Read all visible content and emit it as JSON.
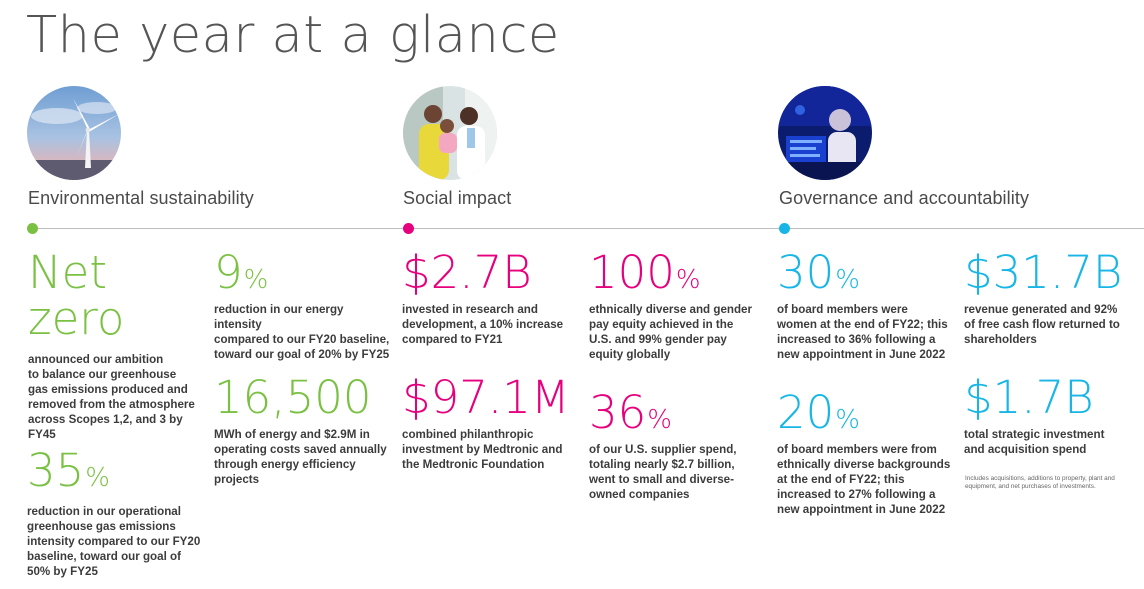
{
  "title": "The year at a glance",
  "colors": {
    "environment": "#7ac143",
    "social": "#e6007e",
    "governance": "#17b6e6"
  },
  "sections": {
    "environment": {
      "label": "Environmental sustainability",
      "photo_icon": "wind-turbine-photo",
      "stats": [
        {
          "value": "Net zero",
          "value_line1": "Net",
          "value_line2": "zero",
          "unit": "",
          "desc_lines": [
            "announced our ambition",
            "to balance our greenhouse",
            "gas emissions produced and",
            "removed from the atmosphere",
            "across Scopes 1,2, and 3 by FY45"
          ]
        },
        {
          "value": "35",
          "unit": "%",
          "desc_lines": [
            "reduction in our operational",
            "greenhouse gas emissions",
            "intensity compared to our FY20",
            "baseline, toward our goal of",
            "50% by FY25"
          ]
        },
        {
          "value": "9",
          "unit": "%",
          "desc_lines": [
            "reduction in our energy intensity",
            "compared to our FY20 baseline,",
            "toward our goal of 20% by FY25"
          ]
        },
        {
          "value": "16,500",
          "unit": "",
          "desc_lines": [
            "MWh of energy and $2.9M in",
            "operating costs saved annually",
            "through energy efficiency",
            "projects"
          ]
        }
      ]
    },
    "social": {
      "label": "Social impact",
      "photo_icon": "healthcare-worker-photo",
      "stats": [
        {
          "value": "$2.7B",
          "unit": "",
          "desc_lines": [
            "invested in research and",
            "development, a 10% increase",
            "compared to FY21"
          ]
        },
        {
          "value": "$97.1M",
          "unit": "",
          "desc_lines": [
            "combined philanthropic",
            "investment by Medtronic and",
            "the Medtronic Foundation"
          ]
        },
        {
          "value": "100",
          "unit": "%",
          "desc_lines": [
            "ethnically diverse and gender",
            "pay equity achieved in the",
            "U.S. and 99% gender pay",
            "equity globally"
          ]
        },
        {
          "value": "36",
          "unit": "%",
          "desc_lines": [
            "of our U.S. supplier spend,",
            "totaling nearly $2.7 billion,",
            "went to small and diverse-",
            "owned companies"
          ]
        }
      ]
    },
    "governance": {
      "label": "Governance and accountability",
      "photo_icon": "laboratory-photo",
      "stats": [
        {
          "value": "30",
          "unit": "%",
          "desc_lines": [
            "of board members were",
            "women at the end of FY22; this",
            "increased to 36% following a",
            "new appointment in June 2022"
          ]
        },
        {
          "value": "20",
          "unit": "%",
          "desc_lines": [
            "of board members were from",
            "ethnically diverse backgrounds",
            "at the end of FY22; this",
            "increased to 27% following a",
            "new appointment in June 2022"
          ]
        },
        {
          "value": "$31.7B",
          "unit": "",
          "desc_lines": [
            "revenue generated and 92%",
            "of free cash flow returned to",
            "shareholders"
          ]
        },
        {
          "value": "$1.7B",
          "unit": "",
          "desc_lines": [
            "total strategic investment",
            "and acquisition spend"
          ]
        }
      ],
      "footnote_lines": [
        "Includes acquisitions, additions to property, plant and",
        "equipment, and net purchases of investments."
      ]
    }
  }
}
